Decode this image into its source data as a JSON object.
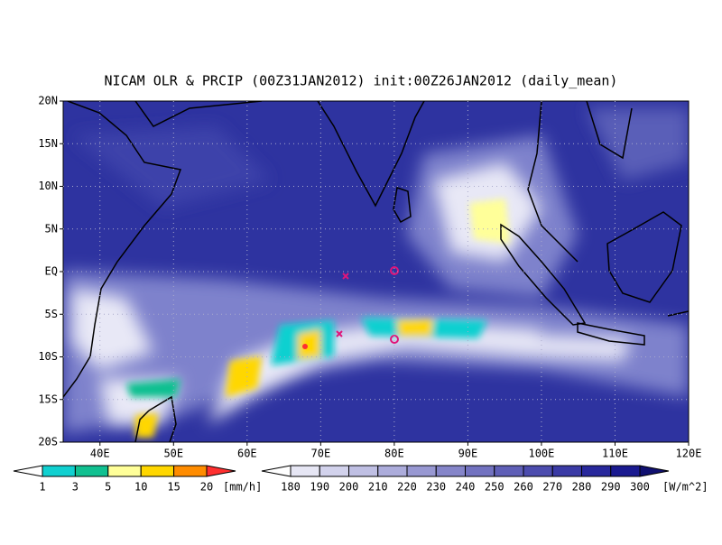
{
  "map": {
    "title": "NICAM OLR & PRCIP (00Z31JAN2012) init:00Z26JAN2012 (daily_mean)",
    "lonlim": [
      35,
      120
    ],
    "latlim": [
      -20,
      20
    ],
    "lon_ticks": [
      {
        "value": 40,
        "label": "40E"
      },
      {
        "value": 50,
        "label": "50E"
      },
      {
        "value": 60,
        "label": "60E"
      },
      {
        "value": 70,
        "label": "70E"
      },
      {
        "value": 80,
        "label": "80E"
      },
      {
        "value": 90,
        "label": "90E"
      },
      {
        "value": 100,
        "label": "100E"
      },
      {
        "value": 110,
        "label": "110E"
      },
      {
        "value": 120,
        "label": "120E"
      }
    ],
    "lat_ticks": [
      {
        "value": 20,
        "label": "20N"
      },
      {
        "value": 15,
        "label": "15N"
      },
      {
        "value": 10,
        "label": "10N"
      },
      {
        "value": 5,
        "label": "5N"
      },
      {
        "value": 0,
        "label": "EQ"
      },
      {
        "value": -5,
        "label": "5S"
      },
      {
        "value": -10,
        "label": "10S"
      },
      {
        "value": -15,
        "label": "15S"
      },
      {
        "value": -20,
        "label": "20S"
      }
    ],
    "grid": true,
    "precip_colorbar": {
      "levels": [
        1,
        3,
        5,
        10,
        15,
        20
      ],
      "unit": "[mm/h]",
      "colors": [
        "#ffffff",
        "#10d0d0",
        "#10c090",
        "#ffff99",
        "#ffd700",
        "#ff8c00",
        "#ff3030"
      ]
    },
    "olr_colorbar": {
      "levels": [
        180,
        190,
        200,
        210,
        220,
        230,
        240,
        250,
        260,
        270,
        280,
        290,
        300
      ],
      "unit": "[W/m^2]",
      "colors": [
        "#ffffff",
        "#e6e6f4",
        "#d2d2ec",
        "#bfbfe3",
        "#acacdb",
        "#9898d2",
        "#8585c9",
        "#7272c0",
        "#5f5fb7",
        "#4c4cae",
        "#3a3aa5",
        "#28289c",
        "#1a1a90",
        "#101070"
      ]
    }
  }
}
